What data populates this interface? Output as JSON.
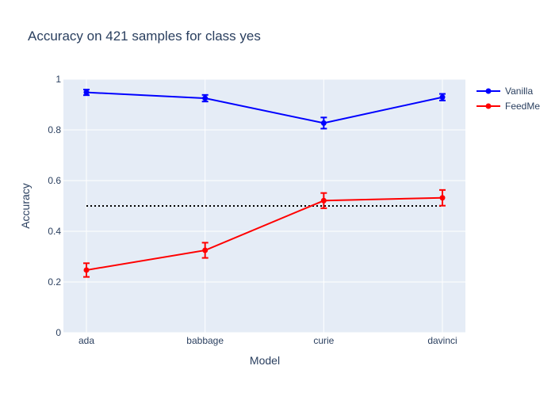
{
  "chart_data": {
    "type": "line",
    "title": "Accuracy on 421 samples for class  yes",
    "xlabel": "Model",
    "ylabel": "Accuracy",
    "categories": [
      "ada",
      "babbage",
      "curie",
      "davinci"
    ],
    "ylim": [
      0,
      1
    ],
    "yticks": [
      0,
      0.2,
      0.4,
      0.6,
      0.8,
      1
    ],
    "ytick_labels": [
      "0",
      "0.2",
      "0.4",
      "0.6",
      "0.8",
      "1"
    ],
    "grid": true,
    "legend_position": "top-right",
    "series": [
      {
        "name": "Vanilla",
        "color": "#0000ff",
        "values": [
          0.948,
          0.925,
          0.827,
          0.929
        ],
        "error": [
          0.011,
          0.013,
          0.022,
          0.013
        ]
      },
      {
        "name": "FeedMe",
        "color": "#ff0000",
        "values": [
          0.247,
          0.325,
          0.521,
          0.532
        ],
        "error": [
          0.027,
          0.03,
          0.03,
          0.031
        ]
      }
    ],
    "reference_line": {
      "value": 0.5,
      "style": "dotted",
      "color": "#000000"
    }
  }
}
